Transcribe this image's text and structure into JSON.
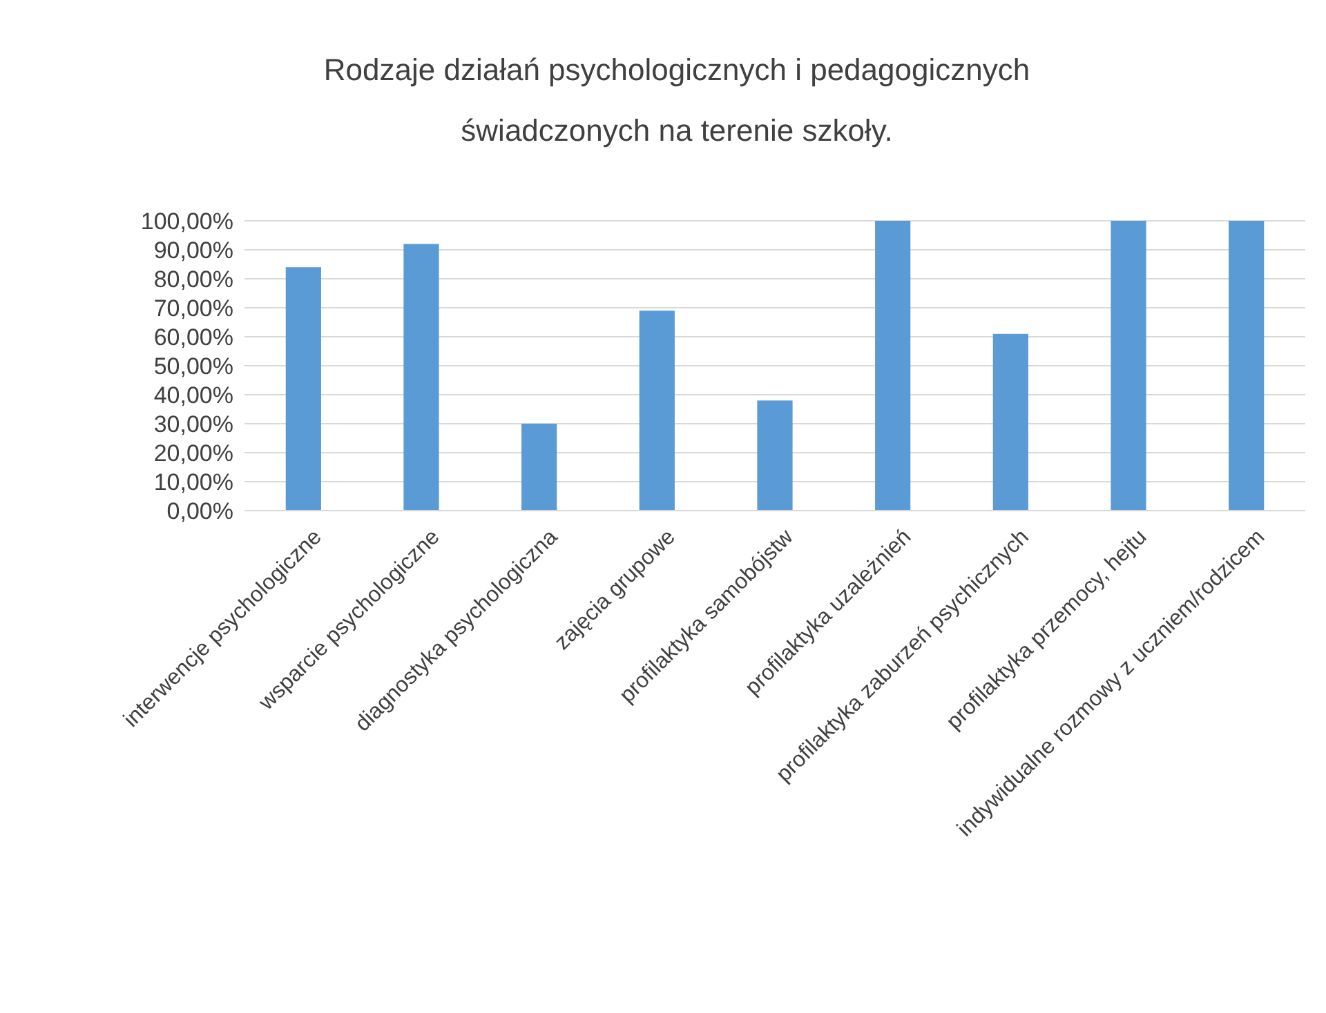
{
  "chart_data": {
    "type": "bar",
    "title": "Rodzaje działań psychologicznych i pedagogicznych świadczonych na terenie szkoły.",
    "categories": [
      "interwencje psychologiczne",
      "wsparcie psychologiczne",
      "diagnostyka psychologiczna",
      "zajęcia grupowe",
      "profilaktyka samobójstw",
      "profilaktyka uzależnień",
      "profilaktyka zaburzeń psychicznych",
      "profilaktyka przemocy, hejtu",
      "indywidualne rozmowy z uczniem/rodzicem"
    ],
    "values": [
      84,
      92,
      30,
      69,
      38,
      100,
      61,
      100,
      100
    ],
    "color": "#5b9bd5",
    "ylim": [
      0,
      100
    ],
    "yticks": [
      {
        "value": 0,
        "label": "0,00%"
      },
      {
        "value": 10,
        "label": "10,00%"
      },
      {
        "value": 20,
        "label": "20,00%"
      },
      {
        "value": 30,
        "label": "30,00%"
      },
      {
        "value": 40,
        "label": "40,00%"
      },
      {
        "value": 50,
        "label": "50,00%"
      },
      {
        "value": 60,
        "label": "60,00%"
      },
      {
        "value": 70,
        "label": "70,00%"
      },
      {
        "value": 80,
        "label": "80,00%"
      },
      {
        "value": 90,
        "label": "90,00%"
      },
      {
        "value": 100,
        "label": "100,00%"
      }
    ],
    "grid": "y"
  }
}
